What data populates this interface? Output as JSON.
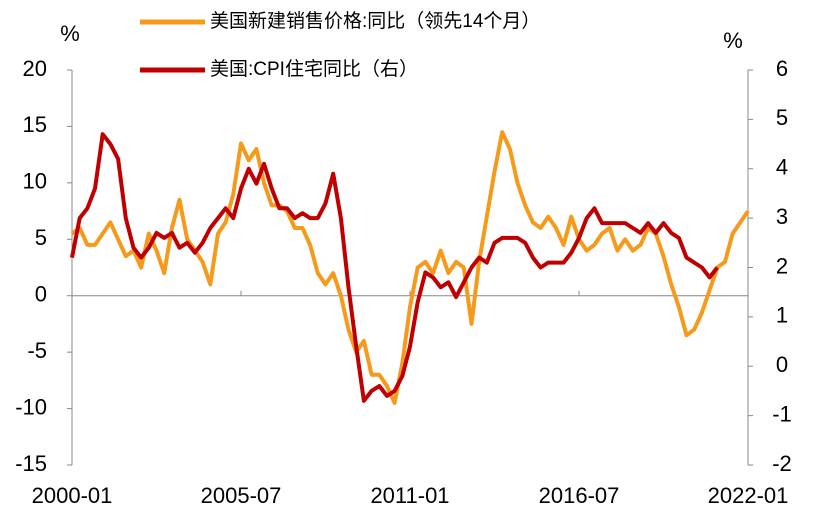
{
  "chart_data": {
    "type": "line",
    "unit_left": "%",
    "unit_right": "%",
    "x": [
      "2000-01",
      "2000-04",
      "2000-07",
      "2000-10",
      "2001-01",
      "2001-04",
      "2001-07",
      "2001-10",
      "2002-01",
      "2002-04",
      "2002-07",
      "2002-10",
      "2003-01",
      "2003-04",
      "2003-07",
      "2003-10",
      "2004-01",
      "2004-04",
      "2004-07",
      "2004-10",
      "2005-01",
      "2005-04",
      "2005-07",
      "2005-10",
      "2006-01",
      "2006-04",
      "2006-07",
      "2006-10",
      "2007-01",
      "2007-04",
      "2007-07",
      "2007-10",
      "2008-01",
      "2008-04",
      "2008-07",
      "2008-10",
      "2009-01",
      "2009-04",
      "2009-07",
      "2009-10",
      "2010-01",
      "2010-04",
      "2010-07",
      "2010-10",
      "2011-01",
      "2011-04",
      "2011-07",
      "2011-10",
      "2012-01",
      "2012-04",
      "2012-07",
      "2012-10",
      "2013-01",
      "2013-04",
      "2013-07",
      "2013-10",
      "2014-01",
      "2014-04",
      "2014-07",
      "2014-10",
      "2015-01",
      "2015-04",
      "2015-07",
      "2015-10",
      "2016-01",
      "2016-04",
      "2016-07",
      "2016-10",
      "2017-01",
      "2017-04",
      "2017-07",
      "2017-10",
      "2018-01",
      "2018-04",
      "2018-07",
      "2018-10",
      "2019-01",
      "2019-04",
      "2019-07",
      "2019-10",
      "2020-01",
      "2020-04",
      "2020-07",
      "2020-10",
      "2021-01",
      "2021-04",
      "2021-07",
      "2021-10",
      "2022-01"
    ],
    "xticks": [
      "2000-01",
      "2005-07",
      "2011-01",
      "2016-07",
      "2022-01"
    ],
    "series": [
      {
        "name": "美国新建销售价格:同比（领先14个月）",
        "color": "#f59a1b",
        "values": [
          5.5,
          6,
          4.5,
          4.5,
          5.5,
          6.5,
          5,
          3.5,
          4,
          2.5,
          5.5,
          4,
          2,
          6,
          8.5,
          5,
          4,
          3,
          1,
          5.5,
          6.5,
          9,
          13.5,
          12,
          13,
          10,
          8,
          8,
          7.5,
          6,
          6,
          4.5,
          2,
          1,
          2,
          0,
          -3,
          -5,
          -4,
          -7,
          -7,
          -8,
          -9.5,
          -6,
          -1,
          2.5,
          3,
          2,
          4,
          2,
          3,
          2.5,
          -2.5,
          3,
          7,
          11,
          14.5,
          13,
          10,
          8,
          6.5,
          6,
          7,
          6,
          4.5,
          7,
          5,
          4,
          4.5,
          5.5,
          6,
          4,
          5,
          4,
          4.5,
          6,
          5.5,
          3.5,
          1,
          -1,
          -3.5,
          -3,
          -1.5,
          0.5,
          2.5,
          3,
          5.5,
          6.5,
          7.5
        ]
      },
      {
        "name": "美国:CPI住宅同比（右）",
        "color": "#c00000",
        "axis": "y2",
        "values": [
          2.2,
          3,
          3.2,
          3.6,
          4.7,
          4.5,
          4.2,
          3,
          2.4,
          2.2,
          2.4,
          2.7,
          2.6,
          2.7,
          2.4,
          2.5,
          2.3,
          2.5,
          2.8,
          3,
          3.2,
          3,
          3.6,
          4,
          3.7,
          4.1,
          3.6,
          3.2,
          3.2,
          3,
          3.1,
          3,
          3,
          3.3,
          3.9,
          3,
          1.6,
          0.4,
          -0.7,
          -0.5,
          -0.4,
          -0.6,
          -0.5,
          -0.2,
          0.4,
          1.3,
          1.9,
          1.8,
          1.6,
          1.7,
          1.4,
          1.7,
          2,
          2.2,
          2.1,
          2.5,
          2.6,
          2.6,
          2.6,
          2.5,
          2.2,
          2,
          2.1,
          2.1,
          2.1,
          2.3,
          2.6,
          3,
          3.2,
          2.9,
          2.9,
          2.9,
          2.9,
          2.8,
          2.7,
          2.9,
          2.7,
          2.9,
          2.7,
          2.6,
          2.2,
          2.1,
          2,
          1.8,
          2,
          null,
          null,
          null,
          null
        ]
      }
    ],
    "ylim": [
      -15,
      20
    ],
    "yticks": [
      -15,
      -10,
      -5,
      0,
      5,
      10,
      15,
      20
    ],
    "y2lim": [
      -2,
      6
    ],
    "y2ticks": [
      -2,
      -1,
      0,
      1,
      2,
      3,
      4,
      5,
      6
    ],
    "grid": false
  }
}
